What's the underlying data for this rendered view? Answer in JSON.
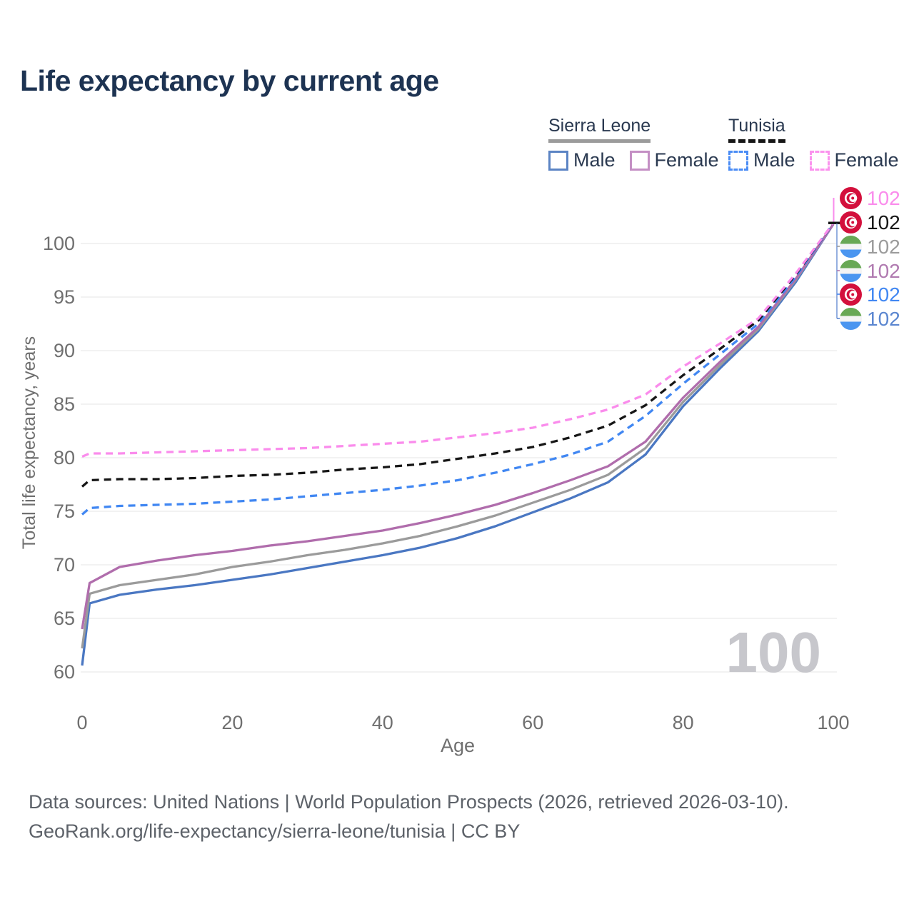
{
  "title": "Life expectancy by current age",
  "colors": {
    "title": "#1d3352",
    "axis_text": "#6f6f6f",
    "grid": "#ebebeb",
    "watermark": "#c7c7cc",
    "footer_text": "#5d6269",
    "legend_text": "#2a3950",
    "leader_blue": "#7b9bd8"
  },
  "legend": {
    "groups": [
      {
        "country": "Sierra Leone",
        "line_style": "solid",
        "underline_color": "#9b9b9b",
        "items": [
          {
            "label": "Male",
            "color": "#5b84c4"
          },
          {
            "label": "Female",
            "color": "#c48fc4"
          }
        ]
      },
      {
        "country": "Tunisia",
        "line_style": "dashed",
        "underline_color": "#161616",
        "items": [
          {
            "label": "Male",
            "color": "#4a8cf5"
          },
          {
            "label": "Female",
            "color": "#fb93ee"
          }
        ]
      }
    ]
  },
  "chart_data": {
    "type": "line",
    "title": "Life expectancy by current age",
    "xlabel": "Age",
    "ylabel": "Total life expectancy, years",
    "xlim": [
      0,
      100
    ],
    "ylim": [
      60,
      102
    ],
    "x_ticks": [
      0,
      20,
      40,
      60,
      80,
      100
    ],
    "y_ticks": [
      60,
      65,
      70,
      75,
      80,
      85,
      90,
      95,
      100
    ],
    "grid": true,
    "legend_position": "top-right",
    "age_watermark": "100",
    "x": [
      0,
      1,
      5,
      10,
      15,
      20,
      25,
      30,
      35,
      40,
      45,
      50,
      55,
      60,
      65,
      70,
      75,
      80,
      85,
      90,
      95,
      100
    ],
    "series": [
      {
        "name": "Sierra Leone Male",
        "country": "Sierra Leone",
        "sex": "Male",
        "dash": false,
        "color": "#4a77c2",
        "end_label": "102",
        "values": [
          60.6,
          66.4,
          67.2,
          67.7,
          68.1,
          68.6,
          69.1,
          69.7,
          70.3,
          70.9,
          71.6,
          72.5,
          73.6,
          74.9,
          76.2,
          77.7,
          80.3,
          84.8,
          88.4,
          91.8,
          96.4,
          101.8
        ]
      },
      {
        "name": "Sierra Leone Both sexes",
        "country": "Sierra Leone",
        "sex": "Both",
        "dash": false,
        "color": "#9b9b9b",
        "end_label": "102",
        "values": [
          62.2,
          67.3,
          68.1,
          68.6,
          69.1,
          69.8,
          70.3,
          70.9,
          71.4,
          72.0,
          72.7,
          73.6,
          74.6,
          75.8,
          77.0,
          78.4,
          80.9,
          85.2,
          88.7,
          92.0,
          96.6,
          101.8
        ]
      },
      {
        "name": "Sierra Leone Female",
        "country": "Sierra Leone",
        "sex": "Female",
        "dash": false,
        "color": "#b06dac",
        "end_label": "102",
        "values": [
          64.0,
          68.3,
          69.8,
          70.4,
          70.9,
          71.3,
          71.8,
          72.2,
          72.7,
          73.2,
          73.9,
          74.7,
          75.6,
          76.7,
          77.9,
          79.2,
          81.5,
          85.6,
          89.0,
          92.2,
          96.7,
          101.8
        ]
      },
      {
        "name": "Tunisia Male",
        "country": "Tunisia",
        "sex": "Male",
        "dash": true,
        "color": "#4187f2",
        "end_label": "102",
        "values": [
          74.7,
          75.3,
          75.5,
          75.6,
          75.7,
          75.9,
          76.1,
          76.4,
          76.7,
          77.0,
          77.4,
          77.9,
          78.6,
          79.4,
          80.3,
          81.5,
          83.9,
          86.9,
          89.7,
          92.5,
          96.9,
          101.9
        ]
      },
      {
        "name": "Tunisia Both sexes",
        "country": "Tunisia",
        "sex": "Both",
        "dash": true,
        "color": "#161616",
        "end_label": "102",
        "values": [
          77.3,
          77.9,
          78.0,
          78.0,
          78.1,
          78.3,
          78.4,
          78.6,
          78.9,
          79.1,
          79.4,
          79.9,
          80.4,
          81.0,
          81.9,
          83.0,
          84.9,
          87.7,
          90.2,
          92.8,
          97.1,
          101.9
        ]
      },
      {
        "name": "Tunisia Female",
        "country": "Tunisia",
        "sex": "Female",
        "dash": true,
        "color": "#fa8cec",
        "end_label": "102",
        "values": [
          80.1,
          80.4,
          80.4,
          80.5,
          80.6,
          80.7,
          80.8,
          80.9,
          81.1,
          81.3,
          81.5,
          81.9,
          82.3,
          82.8,
          83.6,
          84.5,
          85.9,
          88.5,
          90.7,
          93.0,
          97.2,
          101.9
        ]
      }
    ]
  },
  "end_labels": [
    {
      "value": "102",
      "flag": "tunisia",
      "series": "Tunisia Female",
      "color": "#fa8cec"
    },
    {
      "value": "102",
      "flag": "tunisia",
      "series": "Tunisia Both sexes",
      "color": "#161616"
    },
    {
      "value": "102",
      "flag": "sierra-leone",
      "series": "Sierra Leone Both sexes",
      "color": "#9b9b9b"
    },
    {
      "value": "102",
      "flag": "sierra-leone",
      "series": "Sierra Leone Female",
      "color": "#b07ab0"
    },
    {
      "value": "102",
      "flag": "tunisia",
      "series": "Tunisia Male",
      "color": "#4187f2"
    },
    {
      "value": "102",
      "flag": "sierra-leone",
      "series": "Sierra Leone Male",
      "color": "#5b86d0"
    }
  ],
  "footer": {
    "line1": "Data sources: United Nations | World Population Prospects (2026, retrieved 2026-03-10).",
    "line2": "GeoRank.org/life-expectancy/sierra-leone/tunisia | CC BY"
  }
}
